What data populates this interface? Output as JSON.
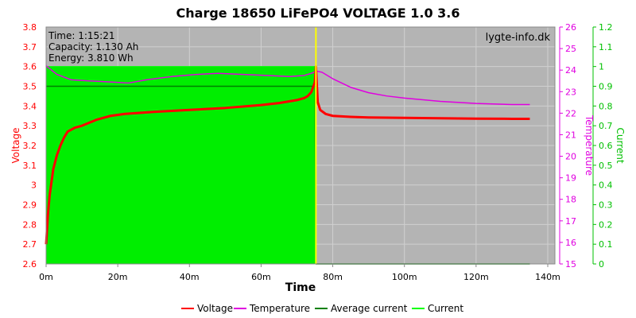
{
  "chart_data": {
    "type": "line",
    "title": "Charge 18650 LiFePO4 VOLTAGE 1.0 3.6",
    "watermark": "lygte-info.dk",
    "info": [
      "Time: 1:15:21",
      "Capacity: 1.130 Ah",
      "Energy: 3.810 Wh"
    ],
    "xlabel": "Time",
    "xlim": [
      0,
      142
    ],
    "x_ticks": [
      0,
      20,
      40,
      60,
      80,
      100,
      120,
      140
    ],
    "x_tick_suffix": "m",
    "axes": {
      "voltage": {
        "label": "Voltage",
        "lim": [
          2.6,
          3.8
        ],
        "ticks": [
          2.6,
          2.7,
          2.8,
          2.9,
          3,
          3.1,
          3.2,
          3.3,
          3.4,
          3.5,
          3.6,
          3.7,
          3.8
        ],
        "color": "#ff0000"
      },
      "temperature": {
        "label": "Temperature",
        "lim": [
          15,
          26
        ],
        "ticks": [
          15,
          16,
          17,
          18,
          19,
          20,
          21,
          22,
          23,
          24,
          25,
          26
        ],
        "color": "#e000e0"
      },
      "current": {
        "label": "Current",
        "lim": [
          0,
          1.2
        ],
        "ticks": [
          0,
          0.1,
          0.2,
          0.3,
          0.4,
          0.5,
          0.6,
          0.7,
          0.8,
          0.9,
          1,
          1.1,
          1.2
        ],
        "color": "#00c000"
      }
    },
    "grid": true,
    "legend_position": "bottom",
    "series": [
      {
        "name": "Voltage",
        "axis": "voltage",
        "color": "#ff0000",
        "x": [
          0,
          0.5,
          1,
          2,
          3,
          4,
          5,
          6,
          8,
          10,
          14,
          18,
          22,
          26,
          30,
          40,
          50,
          60,
          65,
          70,
          72,
          73,
          74,
          75,
          75.3,
          75.8,
          76.5,
          78,
          80,
          85,
          90,
          100,
          110,
          120,
          130,
          135
        ],
        "y": [
          2.7,
          2.85,
          2.95,
          3.08,
          3.15,
          3.2,
          3.24,
          3.27,
          3.29,
          3.3,
          3.33,
          3.35,
          3.36,
          3.365,
          3.37,
          3.38,
          3.39,
          3.405,
          3.415,
          3.43,
          3.44,
          3.45,
          3.47,
          3.52,
          3.6,
          3.42,
          3.38,
          3.36,
          3.35,
          3.345,
          3.342,
          3.34,
          3.338,
          3.336,
          3.335,
          3.335
        ]
      },
      {
        "name": "Temperature",
        "axis": "temperature",
        "color": "#e000e0",
        "x": [
          0,
          3,
          7,
          12,
          18,
          23,
          28,
          35,
          42,
          48,
          55,
          62,
          68,
          72,
          74,
          75.5,
          77,
          80,
          85,
          90,
          95,
          100,
          110,
          120,
          130,
          135
        ],
        "y": [
          24.2,
          23.8,
          23.55,
          23.5,
          23.45,
          23.4,
          23.55,
          23.7,
          23.8,
          23.85,
          23.8,
          23.75,
          23.7,
          23.75,
          23.85,
          23.95,
          23.9,
          23.6,
          23.2,
          22.95,
          22.8,
          22.7,
          22.55,
          22.45,
          22.4,
          22.4
        ]
      },
      {
        "name": "Average current",
        "axis": "current",
        "color": "#008000",
        "x": [
          0,
          75,
          75.3,
          76,
          80,
          100,
          120,
          135
        ],
        "y": [
          0.9,
          0.9,
          0,
          0,
          0,
          0,
          0,
          0
        ]
      },
      {
        "name": "Current",
        "axis": "current",
        "color": "#00ff00",
        "x": [
          0,
          75,
          75.3,
          76,
          80,
          100,
          120,
          135
        ],
        "y": [
          1.0,
          1.0,
          0,
          0,
          0,
          0,
          0,
          0
        ]
      }
    ],
    "marker": {
      "x": 75.3,
      "color": "#ffff00"
    }
  }
}
